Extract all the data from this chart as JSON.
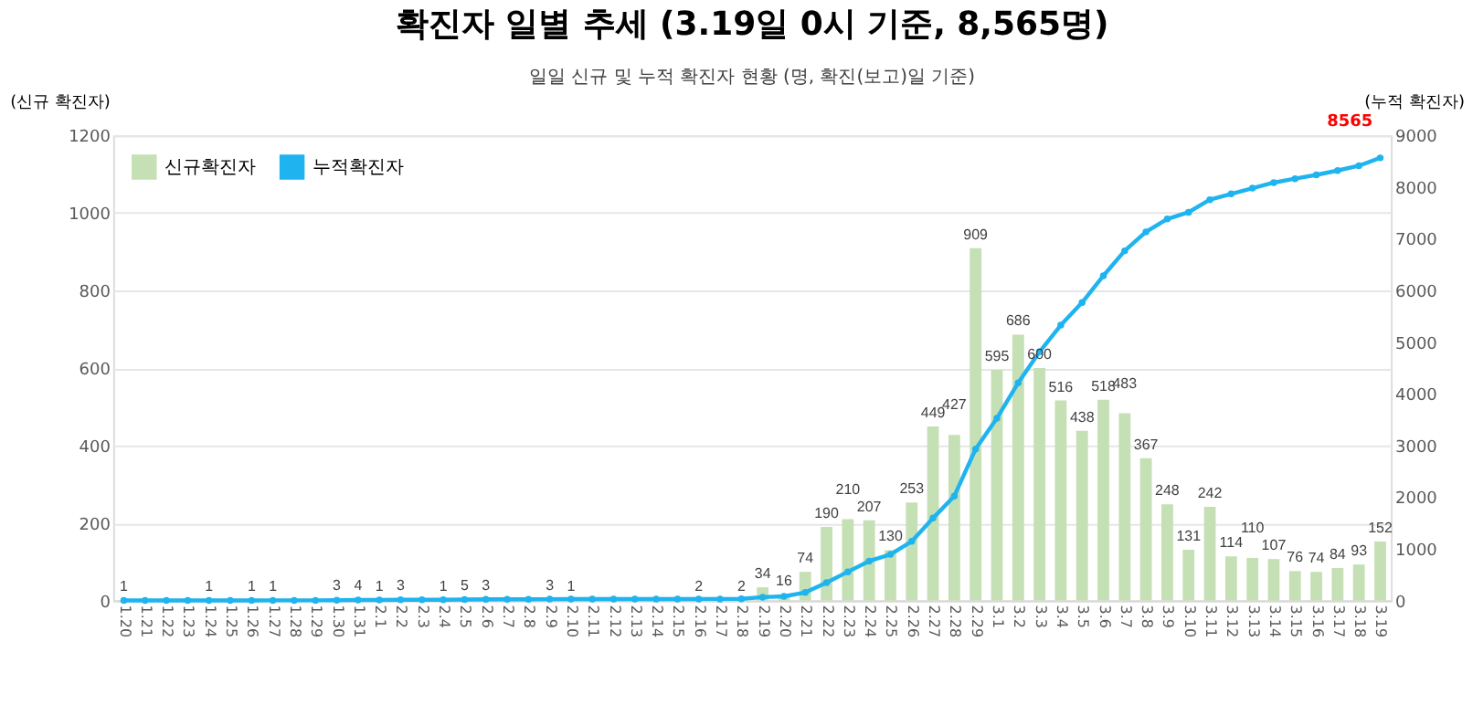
{
  "chart_data": {
    "type": "bar",
    "title": "확진자 일별 추세 (3.19일 0시 기준, 8,565명)",
    "subtitle": "일일 신규 및 누적 확진자 현황 (명, 확진(보고)일 기준)",
    "ylabel": "(신규 확진자)",
    "y2label": "(누적 확진자)",
    "categories": [
      "1.20",
      "1.21",
      "1.22",
      "1.23",
      "1.24",
      "1.25",
      "1.26",
      "1.27",
      "1.28",
      "1.29",
      "1.30",
      "1.31",
      "2.1",
      "2.2",
      "2.3",
      "2.4",
      "2.5",
      "2.6",
      "2.7",
      "2.8",
      "2.9",
      "2.10",
      "2.11",
      "2.12",
      "2.13",
      "2.14",
      "2.15",
      "2.16",
      "2.17",
      "2.18",
      "2.19",
      "2.20",
      "2.21",
      "2.22",
      "2.23",
      "2.24",
      "2.25",
      "2.26",
      "2.27",
      "2.28",
      "2.29",
      "3.1",
      "3.2",
      "3.3",
      "3.4",
      "3.5",
      "3.6",
      "3.7",
      "3.8",
      "3.9",
      "3.10",
      "3.11",
      "3.12",
      "3.13",
      "3.14",
      "3.15",
      "3.16",
      "3.17",
      "3.18",
      "3.19"
    ],
    "series": [
      {
        "name": "신규확진자",
        "color": "#c5e0b4",
        "values": [
          1,
          0,
          0,
          0,
          1,
          0,
          1,
          1,
          0,
          0,
          3,
          4,
          1,
          3,
          0,
          1,
          5,
          3,
          0,
          0,
          3,
          1,
          0,
          0,
          0,
          0,
          0,
          2,
          0,
          2,
          34,
          16,
          74,
          190,
          210,
          207,
          130,
          253,
          449,
          427,
          909,
          595,
          686,
          600,
          516,
          438,
          518,
          483,
          367,
          248,
          131,
          242,
          114,
          110,
          107,
          76,
          74,
          84,
          93,
          152
        ],
        "value_labels": [
          "1",
          null,
          null,
          null,
          "1",
          null,
          "1",
          "1",
          null,
          null,
          "3",
          "4",
          "1",
          "3",
          null,
          "1",
          "5",
          "3",
          null,
          null,
          "3",
          "1",
          null,
          null,
          null,
          null,
          null,
          "2",
          null,
          "2",
          "34",
          "16",
          "74",
          "190",
          "210",
          "207",
          "130",
          "253",
          "449",
          "427",
          "909",
          "595",
          "686",
          "600",
          "516",
          "438",
          "518",
          "483",
          "367",
          "248",
          "131",
          "242",
          "114",
          "110",
          "107",
          "76",
          "74",
          "84",
          "93",
          "152"
        ]
      },
      {
        "name": "누적확진자",
        "type": "line",
        "axis": "y2",
        "color": "#1fb4ef",
        "marker": "circle",
        "line_style": "solid",
        "values": [
          1,
          1,
          1,
          1,
          2,
          2,
          3,
          4,
          4,
          4,
          7,
          11,
          12,
          15,
          15,
          16,
          21,
          24,
          24,
          24,
          27,
          28,
          28,
          28,
          28,
          28,
          28,
          30,
          30,
          32,
          66,
          82,
          156,
          346,
          556,
          763,
          893,
          1146,
          1595,
          2022,
          2931,
          3526,
          4212,
          4812,
          5328,
          5766,
          6284,
          6767,
          7134,
          7382,
          7513,
          7755,
          7869,
          7979,
          8086,
          8162,
          8236,
          8320,
          8413,
          8565
        ]
      }
    ],
    "ylim": [
      0,
      1200
    ],
    "yticks": [
      0,
      200,
      400,
      600,
      800,
      1000,
      1200
    ],
    "y2lim": [
      0,
      9000
    ],
    "y2ticks": [
      0,
      1000,
      2000,
      3000,
      4000,
      5000,
      6000,
      7000,
      8000,
      9000
    ],
    "grid": "y",
    "legend": "top left",
    "annotations": [
      "8565"
    ]
  }
}
